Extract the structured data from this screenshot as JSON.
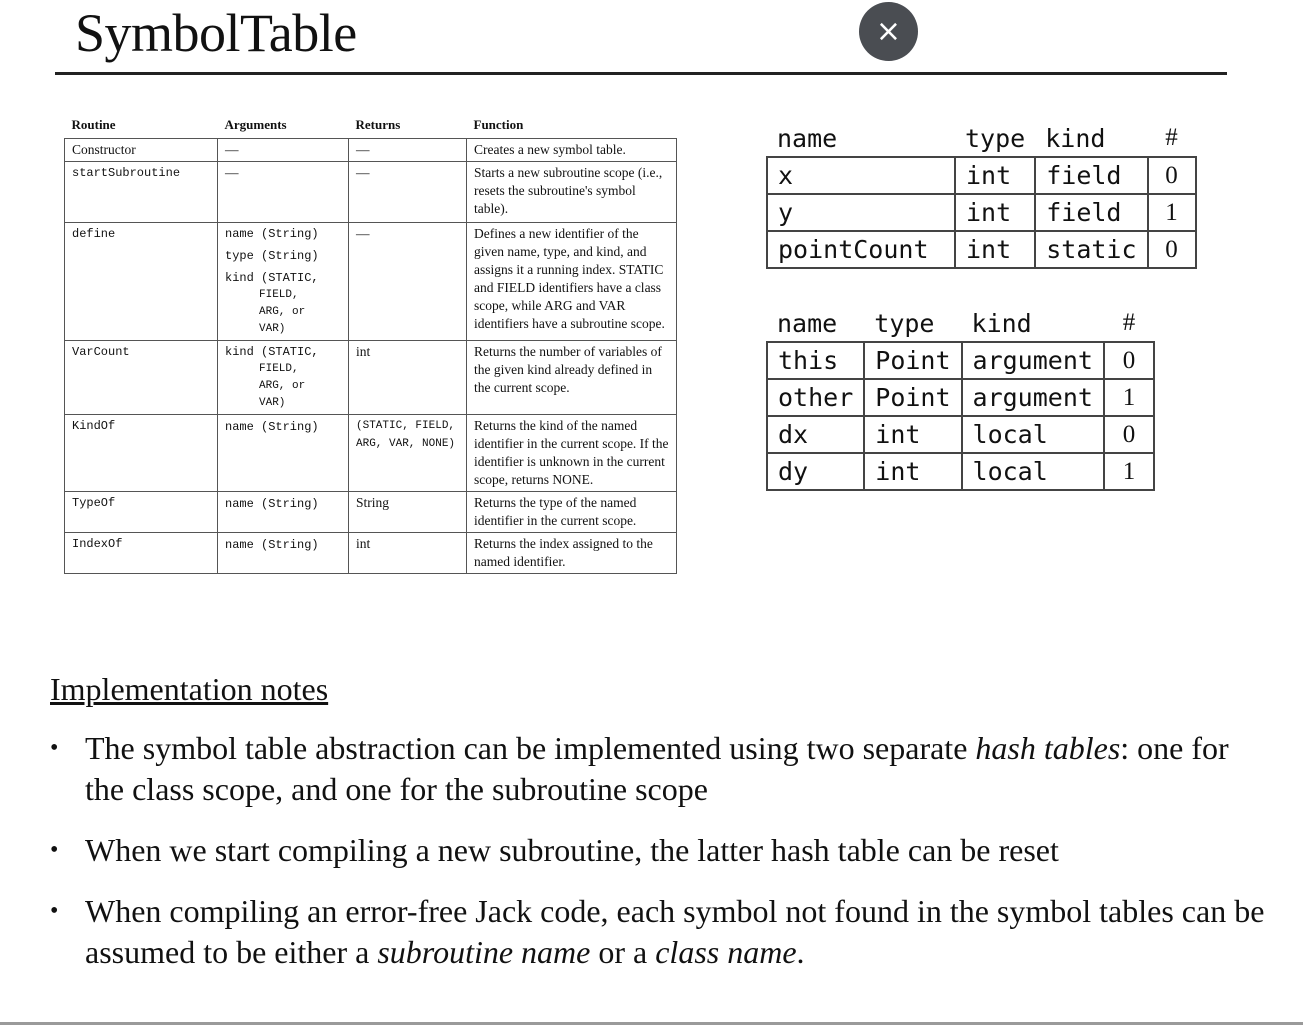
{
  "title": "SymbolTable",
  "close_label": "×",
  "api_table": {
    "headers": [
      "Routine",
      "Arguments",
      "Returns",
      "Function"
    ],
    "rows": [
      {
        "routine": "Constructor",
        "args": [
          "—"
        ],
        "returns": "—",
        "function": "Creates a new symbol table."
      },
      {
        "routine": "startSubroutine",
        "args": [
          "—"
        ],
        "returns": "—",
        "function": "Starts a new subroutine scope (i.e., resets the subroutine's symbol table)."
      },
      {
        "routine": "define",
        "args": [
          "name (String)",
          "type (String)",
          "kind (STATIC,",
          "FIELD,",
          "ARG, or",
          "VAR)"
        ],
        "returns": "—",
        "function": "Defines a new identifier of the given name, type, and kind, and assigns it a running index. STATIC and FIELD identifiers have a class scope, while ARG and VAR identifiers have a subroutine scope."
      },
      {
        "routine": "VarCount",
        "args": [
          "kind (STATIC,",
          "FIELD,",
          "ARG, or",
          "VAR)"
        ],
        "returns": "int",
        "function": "Returns the number of variables of the given kind already defined in the current scope."
      },
      {
        "routine": "KindOf",
        "args": [
          "name (String)"
        ],
        "returns": "(STATIC, FIELD, ARG, VAR, NONE)",
        "function": "Returns the kind of the named identifier in the current scope. If the identifier is unknown in the current scope, returns NONE."
      },
      {
        "routine": "TypeOf",
        "args": [
          "name (String)"
        ],
        "returns": "String",
        "function": "Returns the type of the named identifier in the current scope."
      },
      {
        "routine": "IndexOf",
        "args": [
          "name (String)"
        ],
        "returns": "int",
        "function": "Returns the index assigned to the named identifier."
      }
    ]
  },
  "class_table": {
    "headers": [
      "name",
      "type",
      "kind",
      "#"
    ],
    "rows": [
      [
        "x",
        "int",
        "field",
        "0"
      ],
      [
        "y",
        "int",
        "field",
        "1"
      ],
      [
        "pointCount",
        "int",
        "static",
        "0"
      ]
    ]
  },
  "subroutine_table": {
    "headers": [
      "name",
      "type",
      "kind",
      "#"
    ],
    "rows": [
      [
        "this",
        "Point",
        "argument",
        "0"
      ],
      [
        "other",
        "Point",
        "argument",
        "1"
      ],
      [
        "dx",
        "int",
        "local",
        "0"
      ],
      [
        "dy",
        "int",
        "local",
        "1"
      ]
    ]
  },
  "notes": {
    "heading": "Implementation notes",
    "bullet_char": "•",
    "items": [
      {
        "a": "The symbol table abstraction can be implemented using two separate ",
        "em1": "hash tables",
        "b": ": one for the class scope, and one for the subroutine scope",
        "em2": "",
        "c": "",
        "em3": "",
        "d": ""
      },
      {
        "a": "When we start compiling a new subroutine, the latter hash table can be reset",
        "em1": "",
        "b": "",
        "em2": "",
        "c": "",
        "em3": "",
        "d": ""
      },
      {
        "a": "When compiling an error-free Jack code, each symbol not found in the symbol tables can be assumed to be either a ",
        "em1": "subroutine name",
        "b": " or a ",
        "em2": "class name",
        "c": ".",
        "em3": "",
        "d": ""
      }
    ]
  }
}
